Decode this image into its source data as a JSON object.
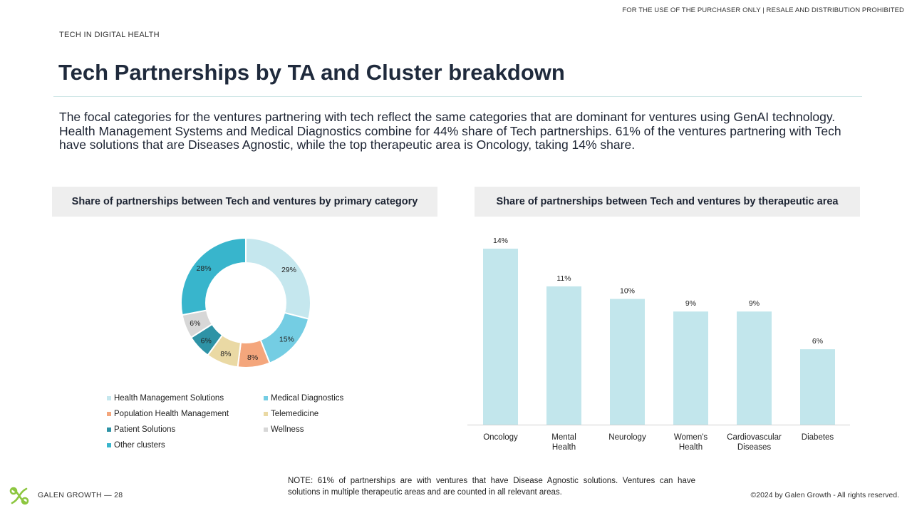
{
  "header": {
    "disclaimer": "FOR THE USE OF THE PURCHASER ONLY | RESALE AND DISTRIBUTION PROHIBITED",
    "section_label": "TECH IN DIGITAL HEALTH",
    "title": "Tech Partnerships by TA and Cluster breakdown"
  },
  "intro": "The focal categories for the ventures partnering with tech reflect the same categories that are dominant for ventures using GenAI technology. Health Management Systems and Medical Diagnostics combine for 44% share of Tech partnerships. 61% of the ventures partnering with Tech have solutions that are Diseases Agnostic, while the top therapeutic area is Oncology, taking 14% share.",
  "left_panel": {
    "title": "Share of partnerships between Tech and ventures by primary category"
  },
  "right_panel": {
    "title": "Share of partnerships between Tech and ventures by therapeutic area"
  },
  "chart_data": [
    {
      "type": "pie",
      "style": "donut",
      "title": "Share of partnerships between Tech and ventures by primary category",
      "legend_position": "bottom",
      "slices": [
        {
          "label": "Health Management Solutions",
          "value": 29,
          "display": "29%",
          "color": "#c5e7ee"
        },
        {
          "label": "Medical Diagnostics",
          "value": 15,
          "display": "15%",
          "color": "#74cde3"
        },
        {
          "label": "Population Health Management",
          "value": 8,
          "display": "8%",
          "color": "#f4a67c"
        },
        {
          "label": "Telemedicine",
          "value": 8,
          "display": "8%",
          "color": "#ead9a4"
        },
        {
          "label": "Patient Solutions",
          "value": 6,
          "display": "6%",
          "color": "#2e93a6"
        },
        {
          "label": "Wellness",
          "value": 6,
          "display": "6%",
          "color": "#d7d7d7"
        },
        {
          "label": "Other clusters",
          "value": 28,
          "display": "28%",
          "color": "#38b5cc"
        }
      ]
    },
    {
      "type": "bar",
      "title": "Share of partnerships between Tech and ventures by therapeutic area",
      "categories": [
        [
          "Oncology"
        ],
        [
          "Mental",
          "Health"
        ],
        [
          "Neurology"
        ],
        [
          "Women's",
          "Health"
        ],
        [
          "Cardiovascular",
          "Diseases"
        ],
        [
          "Diabetes"
        ]
      ],
      "values": [
        14,
        11,
        10,
        9,
        9,
        6
      ],
      "labels": [
        "14%",
        "11%",
        "10%",
        "9%",
        "9%",
        "6%"
      ],
      "ylim": [
        0,
        14
      ],
      "bar_color": "#c2e6ec",
      "grid": false
    }
  ],
  "note": "NOTE: 61% of partnerships are with ventures that have Disease Agnostic solutions. Ventures can have solutions in multiple therapeutic areas and are counted in all relevant areas.",
  "footer": {
    "brand": "GALEN GROWTH  —  28",
    "copyright": "©2024 by Galen Growth  - All rights reserved.",
    "logo_icon": "galen-growth-logo-icon",
    "logo_color": "#8cc63f"
  }
}
